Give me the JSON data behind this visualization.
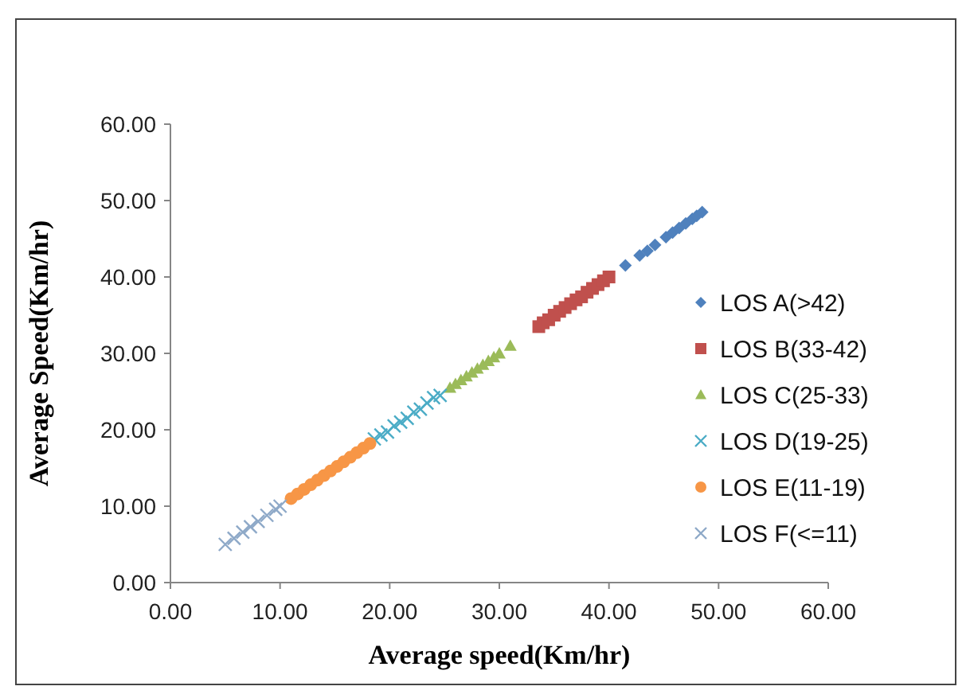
{
  "chart_data": {
    "type": "scatter",
    "xlabel": "Average speed(Km/hr)",
    "ylabel": "Average Speed(Km/hr)",
    "xlim": [
      0,
      60
    ],
    "ylim": [
      0,
      60
    ],
    "xticks": [
      {
        "value": 0,
        "label": "0.00"
      },
      {
        "value": 10,
        "label": "10.00"
      },
      {
        "value": 20,
        "label": "20.00"
      },
      {
        "value": 30,
        "label": "30.00"
      },
      {
        "value": 40,
        "label": "40.00"
      },
      {
        "value": 50,
        "label": "50.00"
      },
      {
        "value": 60,
        "label": "60.00"
      }
    ],
    "yticks": [
      {
        "value": 0,
        "label": "0.00"
      },
      {
        "value": 10,
        "label": "10.00"
      },
      {
        "value": 20,
        "label": "20.00"
      },
      {
        "value": 30,
        "label": "30.00"
      },
      {
        "value": 40,
        "label": "40.00"
      },
      {
        "value": 50,
        "label": "50.00"
      },
      {
        "value": 60,
        "label": "60.00"
      }
    ],
    "grid": false,
    "legend": "right",
    "series": [
      {
        "name": "LOS A(>42)",
        "color": "#4f81bd",
        "marker": "diamond",
        "x": [
          41.5,
          42.8,
          43.5,
          44.2,
          45.2,
          45.8,
          46.4,
          47.0,
          47.6,
          48.0,
          48.5
        ],
        "values": [
          41.5,
          42.8,
          43.4,
          44.2,
          45.2,
          45.8,
          46.4,
          47.0,
          47.6,
          48.0,
          48.5
        ]
      },
      {
        "name": "LOS B(33-42)",
        "color": "#c0504d",
        "marker": "square",
        "x": [
          33.6,
          34.0,
          34.5,
          35.0,
          35.5,
          36.0,
          36.5,
          37.0,
          37.5,
          38.0,
          38.5,
          39.0,
          39.5,
          40.0
        ],
        "values": [
          33.5,
          34.0,
          34.4,
          35.0,
          35.5,
          36.0,
          36.5,
          37.0,
          37.4,
          38.0,
          38.5,
          39.0,
          39.5,
          40.0
        ]
      },
      {
        "name": "LOS C(25-33)",
        "color": "#9bbb59",
        "marker": "triangle",
        "x": [
          25.5,
          26.0,
          26.5,
          27.0,
          27.5,
          28.0,
          28.5,
          29.0,
          29.5,
          30.0,
          31.0
        ],
        "values": [
          25.5,
          26.0,
          26.5,
          27.0,
          27.5,
          28.0,
          28.5,
          29.0,
          29.5,
          30.0,
          31.0
        ]
      },
      {
        "name": "LOS D(19-25)",
        "color": "#4bacc6",
        "marker": "cross",
        "x": [
          18.6,
          19.2,
          19.8,
          20.4,
          21.0,
          21.6,
          22.2,
          22.8,
          23.4,
          24.0,
          24.6
        ],
        "values": [
          18.8,
          19.3,
          19.7,
          20.5,
          21.0,
          21.5,
          22.3,
          22.7,
          23.5,
          24.2,
          24.5
        ]
      },
      {
        "name": "LOS E(11-19)",
        "color": "#f79646",
        "marker": "circle",
        "x": [
          11.0,
          11.6,
          12.2,
          12.8,
          13.4,
          14.0,
          14.6,
          15.2,
          15.8,
          16.4,
          17.0,
          17.6,
          18.2
        ],
        "values": [
          11.0,
          11.6,
          12.2,
          12.8,
          13.4,
          14.0,
          14.6,
          15.2,
          15.8,
          16.4,
          17.0,
          17.6,
          18.2
        ]
      },
      {
        "name": "LOS F(<=11)",
        "color": "#8ea9c8",
        "marker": "cross",
        "x": [
          5.0,
          5.8,
          6.6,
          7.3,
          8.0,
          8.8,
          9.6,
          10.0
        ],
        "values": [
          5.0,
          5.8,
          6.6,
          7.3,
          8.0,
          8.8,
          9.6,
          10.0
        ]
      }
    ]
  }
}
